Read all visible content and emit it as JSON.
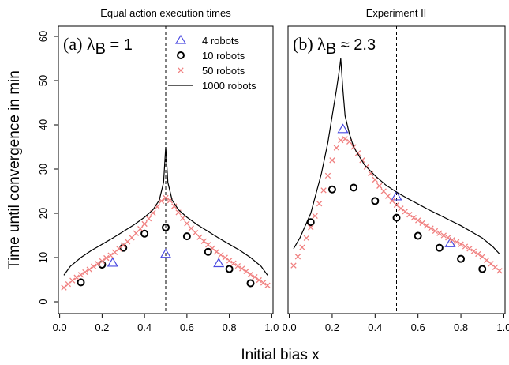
{
  "xlabel": "Initial bias x",
  "ylabel": "Time until convergence in min",
  "chart_data": [
    {
      "type": "line",
      "title": "Equal action execution times",
      "annotation": {
        "prefix": "(a) ",
        "lambda": "λ",
        "sub": "B",
        "rest": " = 1"
      },
      "xlim": [
        0,
        1
      ],
      "ylim": [
        0,
        60
      ],
      "xticks": [
        "0.0",
        "0.2",
        "0.4",
        "0.6",
        "0.8",
        "1.0"
      ],
      "yticks": [
        "0",
        "10",
        "20",
        "30",
        "40",
        "50",
        "60"
      ],
      "vline": 0.5,
      "legend": {
        "position": "top-right",
        "entries": [
          {
            "label": "4 robots",
            "marker": "triangle",
            "color": "#4a4ae0"
          },
          {
            "label": "10 robots",
            "marker": "circle",
            "color": "#000000"
          },
          {
            "label": "50 robots",
            "marker": "cross",
            "color": "#f08080"
          },
          {
            "label": "1000 robots",
            "marker": "line",
            "color": "#000000"
          }
        ]
      },
      "series": [
        {
          "name": "4 robots",
          "marker": "triangle",
          "color": "#4a4ae0",
          "x": [
            0.25,
            0.5,
            0.75
          ],
          "y": [
            8.8,
            10.8,
            8.7
          ]
        },
        {
          "name": "10 robots",
          "marker": "circle",
          "color": "#000000",
          "x": [
            0.1,
            0.2,
            0.3,
            0.4,
            0.5,
            0.6,
            0.7,
            0.8,
            0.9
          ],
          "y": [
            4.4,
            8.4,
            12.2,
            15.4,
            16.8,
            14.8,
            11.3,
            7.4,
            4.2
          ]
        },
        {
          "name": "50 robots",
          "marker": "cross",
          "color": "#f08080",
          "x": [
            0.02,
            0.04,
            0.06,
            0.08,
            0.1,
            0.12,
            0.14,
            0.16,
            0.18,
            0.2,
            0.22,
            0.24,
            0.26,
            0.28,
            0.3,
            0.32,
            0.34,
            0.36,
            0.38,
            0.4,
            0.42,
            0.44,
            0.46,
            0.48,
            0.5,
            0.52,
            0.54,
            0.56,
            0.58,
            0.6,
            0.62,
            0.64,
            0.66,
            0.68,
            0.7,
            0.72,
            0.74,
            0.76,
            0.78,
            0.8,
            0.82,
            0.84,
            0.86,
            0.88,
            0.9,
            0.92,
            0.94,
            0.96,
            0.98
          ],
          "y": [
            3.2,
            4.0,
            4.8,
            5.5,
            6.1,
            6.7,
            7.3,
            8.0,
            8.6,
            9.2,
            9.9,
            10.5,
            11.2,
            12.0,
            12.8,
            13.6,
            14.5,
            15.5,
            16.5,
            17.6,
            18.8,
            20.1,
            21.5,
            22.8,
            23.5,
            22.9,
            21.6,
            20.2,
            18.9,
            17.7,
            16.6,
            15.6,
            14.6,
            13.7,
            12.9,
            12.1,
            11.3,
            10.6,
            10.0,
            9.3,
            8.7,
            8.1,
            7.5,
            6.9,
            6.2,
            5.6,
            4.9,
            4.3,
            3.7
          ]
        },
        {
          "name": "1000 robots",
          "marker": "line",
          "color": "#000000",
          "x": [
            0.02,
            0.05,
            0.1,
            0.15,
            0.2,
            0.25,
            0.3,
            0.35,
            0.4,
            0.44,
            0.47,
            0.49,
            0.5,
            0.51,
            0.53,
            0.56,
            0.6,
            0.65,
            0.7,
            0.75,
            0.8,
            0.85,
            0.9,
            0.95,
            0.98
          ],
          "y": [
            6.0,
            8.0,
            10.0,
            11.6,
            13.0,
            14.4,
            15.9,
            17.4,
            19.1,
            20.8,
            23.0,
            27.0,
            35.0,
            27.0,
            23.0,
            20.8,
            19.1,
            17.4,
            15.9,
            14.4,
            13.0,
            11.6,
            10.0,
            8.0,
            6.0
          ]
        }
      ]
    },
    {
      "type": "line",
      "title": "Experiment II",
      "annotation": {
        "prefix": "(b) ",
        "lambda": "λ",
        "sub": "B",
        "rest": " ≈ 2.3"
      },
      "xlim": [
        0,
        1
      ],
      "ylim": [
        0,
        60
      ],
      "xticks": [
        "0.0",
        "0.2",
        "0.4",
        "0.6",
        "0.8",
        "1.0"
      ],
      "yticks": [],
      "vline": 0.5,
      "series": [
        {
          "name": "4 robots",
          "marker": "triangle",
          "color": "#4a4ae0",
          "x": [
            0.25,
            0.5,
            0.75
          ],
          "y": [
            39.0,
            23.8,
            13.2
          ]
        },
        {
          "name": "10 robots",
          "marker": "circle",
          "color": "#000000",
          "x": [
            0.1,
            0.2,
            0.3,
            0.4,
            0.5,
            0.6,
            0.7,
            0.8,
            0.9
          ],
          "y": [
            18.0,
            25.4,
            25.8,
            22.8,
            19.0,
            14.9,
            12.2,
            9.7,
            7.4
          ]
        },
        {
          "name": "50 robots",
          "marker": "cross",
          "color": "#f08080",
          "x": [
            0.02,
            0.04,
            0.06,
            0.08,
            0.1,
            0.12,
            0.14,
            0.16,
            0.18,
            0.2,
            0.22,
            0.24,
            0.26,
            0.28,
            0.3,
            0.32,
            0.34,
            0.36,
            0.38,
            0.4,
            0.42,
            0.44,
            0.46,
            0.48,
            0.5,
            0.52,
            0.54,
            0.56,
            0.58,
            0.6,
            0.62,
            0.64,
            0.66,
            0.68,
            0.7,
            0.72,
            0.74,
            0.76,
            0.78,
            0.8,
            0.82,
            0.84,
            0.86,
            0.88,
            0.9,
            0.92,
            0.94,
            0.96,
            0.98
          ],
          "y": [
            8.2,
            10.2,
            12.3,
            14.4,
            16.8,
            19.4,
            22.2,
            25.2,
            28.5,
            32.0,
            34.8,
            36.5,
            36.8,
            36.2,
            35.0,
            33.6,
            32.0,
            30.5,
            29.0,
            27.6,
            26.2,
            25.0,
            23.9,
            22.8,
            21.9,
            21.1,
            20.4,
            19.7,
            19.0,
            18.4,
            17.8,
            17.2,
            16.6,
            16.0,
            15.5,
            15.0,
            14.5,
            14.0,
            13.5,
            13.0,
            12.5,
            12.0,
            11.4,
            10.8,
            10.2,
            9.4,
            8.6,
            7.8,
            7.0
          ]
        },
        {
          "name": "1000 robots",
          "marker": "line",
          "color": "#000000",
          "x": [
            0.02,
            0.05,
            0.1,
            0.15,
            0.18,
            0.2,
            0.22,
            0.235,
            0.24,
            0.25,
            0.26,
            0.28,
            0.3,
            0.35,
            0.4,
            0.45,
            0.5,
            0.55,
            0.6,
            0.65,
            0.7,
            0.75,
            0.8,
            0.85,
            0.9,
            0.95,
            0.98
          ],
          "y": [
            12.0,
            14.5,
            20.0,
            29.0,
            36.0,
            42.0,
            48.0,
            53.0,
            55.0,
            48.0,
            42.0,
            38.0,
            35.0,
            31.0,
            28.5,
            26.4,
            24.8,
            23.4,
            22.1,
            20.8,
            19.6,
            18.4,
            17.2,
            15.8,
            14.4,
            12.4,
            10.8
          ]
        }
      ]
    }
  ]
}
